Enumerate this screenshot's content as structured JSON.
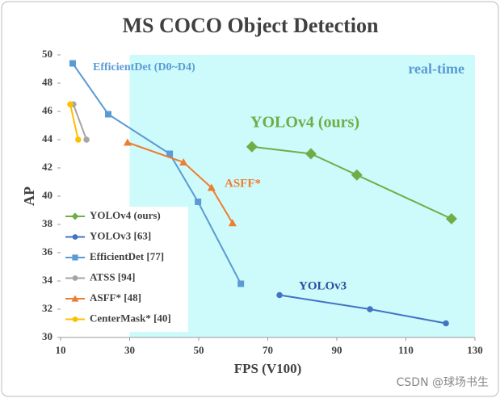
{
  "chart_data": {
    "type": "line",
    "title": "MS COCO Object Detection",
    "x_label": "FPS (V100)",
    "y_label": "AP",
    "xlim": [
      10,
      130
    ],
    "xticks": [
      10,
      30,
      50,
      70,
      90,
      110,
      130
    ],
    "ylim": [
      30,
      50
    ],
    "yticks": [
      30,
      32,
      34,
      36,
      38,
      40,
      42,
      44,
      46,
      48,
      50
    ],
    "legend": "lower left",
    "shaded_region": {
      "x_from": 30,
      "color": "#cdfafa"
    },
    "series": [
      {
        "name": "YOLOv4 (ours)",
        "color": "#70ad47",
        "marker": "diamond",
        "x": [
          65.4,
          82.5,
          95.8,
          123.2
        ],
        "values": [
          43.5,
          43.0,
          41.5,
          38.4
        ]
      },
      {
        "name": "YOLOv3 [63]",
        "color": "#4472c4",
        "marker": "circle",
        "x": [
          73.4,
          99.6,
          121.6
        ],
        "values": [
          33.0,
          32.0,
          31.0
        ]
      },
      {
        "name": "EfficientDet [77]",
        "color": "#5b9bd5",
        "marker": "square",
        "x": [
          13.5,
          23.8,
          41.6,
          49.8,
          62.2
        ],
        "values": [
          49.4,
          45.8,
          43.0,
          39.6,
          33.8
        ]
      },
      {
        "name": "ATSS [94]",
        "color": "#a5a5a5",
        "marker": "circle",
        "x": [
          13.7,
          17.5
        ],
        "values": [
          46.5,
          44.0
        ]
      },
      {
        "name": "ASFF* [48]",
        "color": "#ed7d31",
        "marker": "triangle",
        "x": [
          29.4,
          45.6,
          53.7,
          59.8
        ],
        "values": [
          43.8,
          42.4,
          40.6,
          38.1
        ]
      },
      {
        "name": "CenterMask* [40]",
        "color": "#ffc000",
        "marker": "circle",
        "x": [
          12.8,
          15.1
        ],
        "values": [
          46.5,
          44.0
        ]
      }
    ],
    "annotations": [
      {
        "text": "EfficientDet (D0~D4)",
        "color": "#5b9bd5"
      },
      {
        "text": "YOLOv4 (ours)",
        "color": "#70ad47"
      },
      {
        "text": "ASFF*",
        "color": "#ed7d31"
      },
      {
        "text": "YOLOv3",
        "color": "#2f4f9f"
      },
      {
        "text": "real-time",
        "color": "#5b9bd5"
      }
    ],
    "watermark": "CSDN @球场书生"
  }
}
